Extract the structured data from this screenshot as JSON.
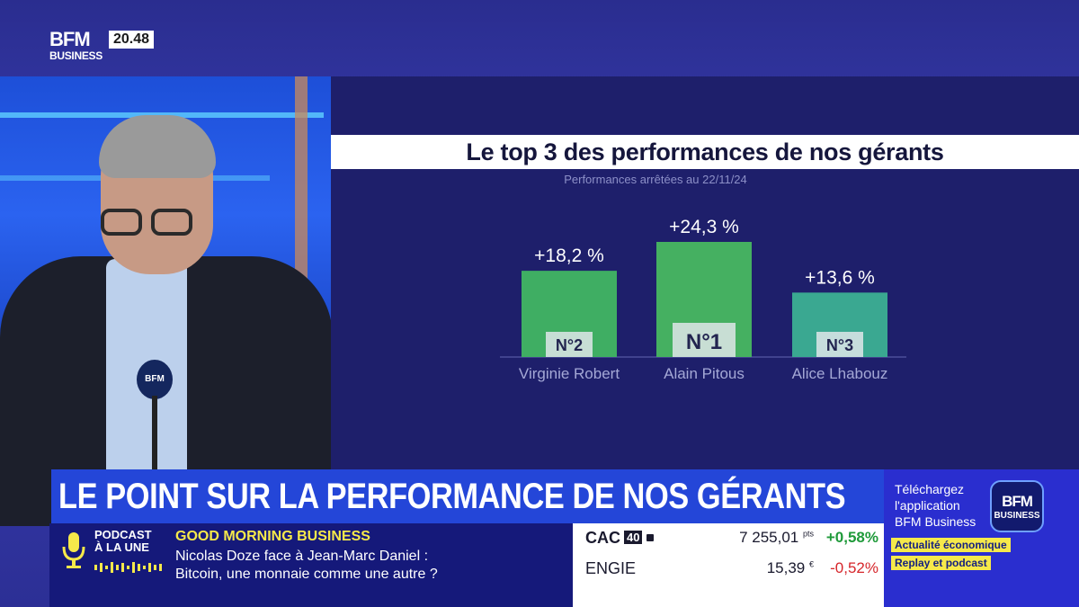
{
  "brand": {
    "logo_top": "BFM",
    "logo_bottom": "BUSINESS",
    "clock": "20.48"
  },
  "mic_label": "BFM",
  "chart_data": {
    "type": "bar",
    "title": "Le top 3 des performances de nos gérants",
    "subtitle": "Performances arrêtées au 22/11/24",
    "categories": [
      "Virginie Robert",
      "Alain Pitous",
      "Alice Lhabouz"
    ],
    "values": [
      18.2,
      24.3,
      13.6
    ],
    "value_labels": [
      "+18,2 %",
      "+24,3 %",
      "+13,6 %"
    ],
    "ranks": [
      "N°2",
      "N°1",
      "N°3"
    ],
    "colors": [
      "#3fae63",
      "#45b061",
      "#3aa891"
    ],
    "ylim": [
      0,
      24.3
    ],
    "grid": false,
    "legend": "none"
  },
  "headline": "LE POINT SUR LA PERFORMANCE DE NOS GÉRANTS",
  "promo": {
    "line1": "Téléchargez",
    "line2": "l'application",
    "line3": "BFM Business",
    "app_top": "BFM",
    "app_bottom": "BUSINESS",
    "tag1": "Actualité économique",
    "tag2": "Replay et podcast"
  },
  "podcast": {
    "label1": "PODCAST",
    "label2": "À LA UNE",
    "show": "GOOD MORNING BUSINESS",
    "desc1": "Nicolas Doze face à Jean-Marc Daniel :",
    "desc2": "Bitcoin, une monnaie comme une autre ?"
  },
  "market": {
    "rows": [
      {
        "name": "CAC",
        "badge": "40",
        "value": "7 255,01",
        "unit": "pts",
        "change": "+0,58%",
        "change_color": "#1f9a3a"
      },
      {
        "name": "ENGIE",
        "badge": "",
        "value": "15,39",
        "unit": "€",
        "change": "-0,52%",
        "change_color": "#d6262b"
      }
    ]
  }
}
